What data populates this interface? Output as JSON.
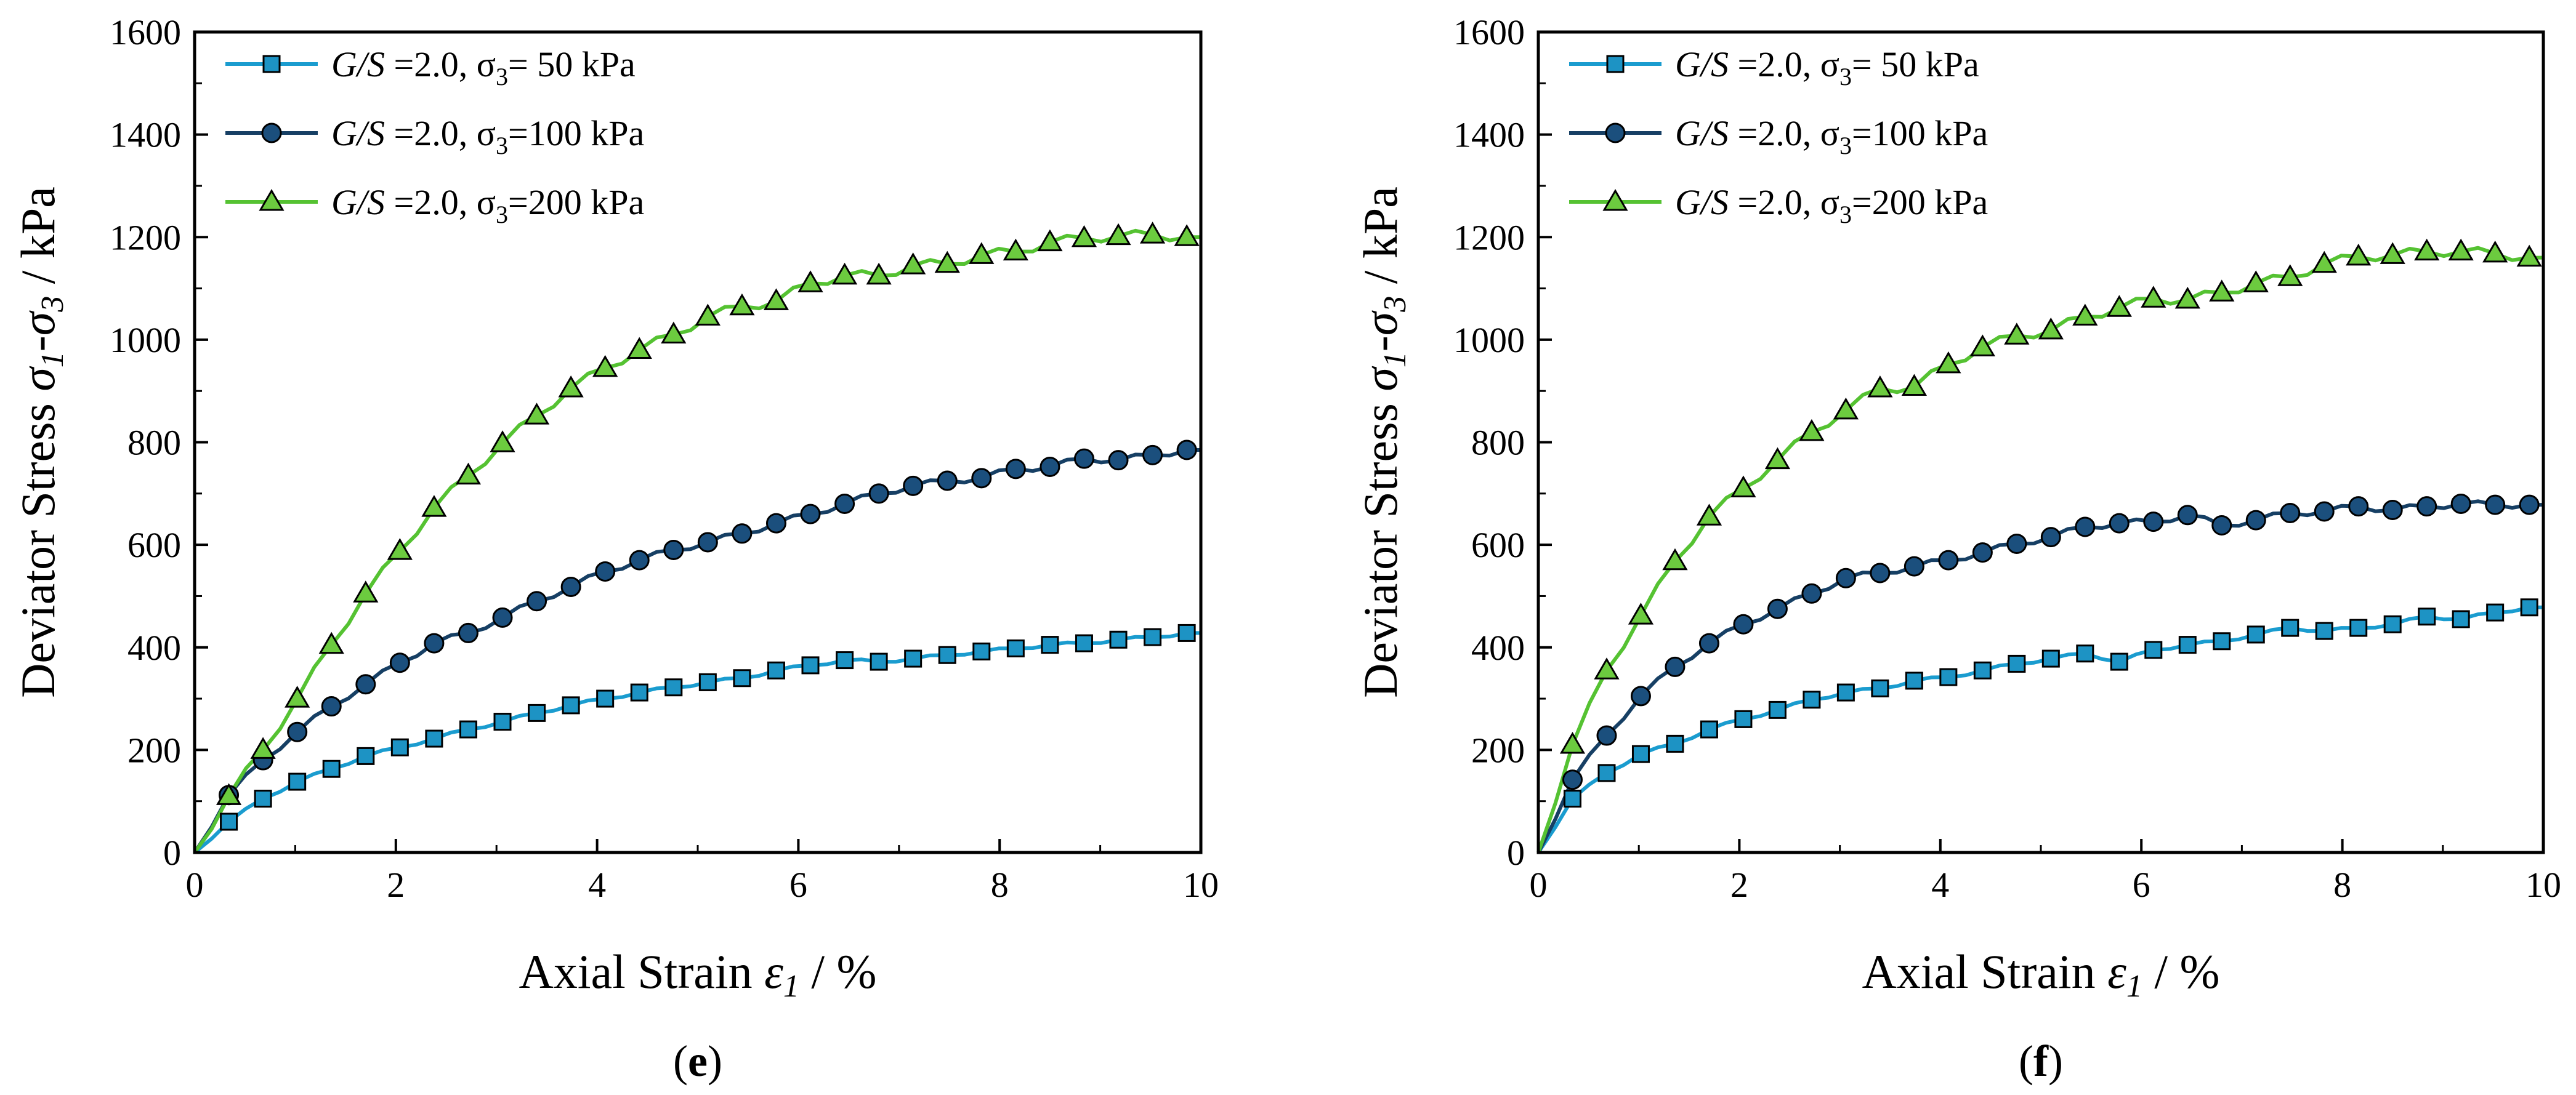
{
  "chart_data": [
    {
      "type": "line",
      "panel_label": "e",
      "xlabel": "Axial Strain ε1 / %",
      "ylabel": "Deviator Stress σ1-σ3 / kPa",
      "xlim": [
        0,
        10
      ],
      "ylim": [
        0,
        1600
      ],
      "xticks": [
        0,
        2,
        4,
        6,
        8,
        10
      ],
      "yticks": [
        0,
        200,
        400,
        600,
        800,
        1000,
        1200,
        1400,
        1600
      ],
      "legend_position": "top-left",
      "series": [
        {
          "name": "G/S =2.0, σ3= 50  kPa",
          "legend": {
            "gs": "G/S",
            "rest": " =2.0, ",
            "sigma": "σ",
            "sub": "3",
            "tail": "= 50  kPa"
          },
          "marker": "square",
          "color": "#1a9ccf",
          "marker_fill": "#1d93c4",
          "x": [
            0,
            0.34,
            0.68,
            1.02,
            1.36,
            1.7,
            2.04,
            2.38,
            2.72,
            3.06,
            3.4,
            3.74,
            4.08,
            4.42,
            4.76,
            5.1,
            5.44,
            5.78,
            6.12,
            6.46,
            6.8,
            7.14,
            7.48,
            7.82,
            8.16,
            8.5,
            8.84,
            9.18,
            9.52,
            9.86
          ],
          "y": [
            0,
            60,
            105,
            138,
            163,
            188,
            205,
            222,
            240,
            255,
            272,
            287,
            300,
            312,
            322,
            332,
            340,
            355,
            365,
            375,
            372,
            378,
            385,
            392,
            398,
            405,
            408,
            415,
            420,
            428
          ]
        },
        {
          "name": "G/S =2.0, σ3=100 kPa",
          "legend": {
            "gs": "G/S",
            "rest": " =2.0, ",
            "sigma": "σ",
            "sub": "3",
            "tail": "=100 kPa"
          },
          "marker": "circle",
          "color": "#163f64",
          "marker_fill": "#1b4f7d",
          "x": [
            0,
            0.34,
            0.68,
            1.02,
            1.36,
            1.7,
            2.04,
            2.38,
            2.72,
            3.06,
            3.4,
            3.74,
            4.08,
            4.42,
            4.76,
            5.1,
            5.44,
            5.78,
            6.12,
            6.46,
            6.8,
            7.14,
            7.48,
            7.82,
            8.16,
            8.5,
            8.84,
            9.18,
            9.52,
            9.86
          ],
          "y": [
            0,
            112,
            180,
            235,
            285,
            328,
            370,
            408,
            428,
            458,
            490,
            518,
            548,
            570,
            590,
            605,
            622,
            642,
            660,
            680,
            700,
            715,
            725,
            730,
            748,
            752,
            768,
            765,
            775,
            785
          ]
        },
        {
          "name": "G/S =2.0, σ3=200 kPa",
          "legend": {
            "gs": "G/S",
            "rest": " =2.0, ",
            "sigma": "σ",
            "sub": "3",
            "tail": "=200 kPa"
          },
          "marker": "triangle",
          "color": "#55c232",
          "marker_fill": "#6ccb3f",
          "x": [
            0,
            0.34,
            0.68,
            1.02,
            1.36,
            1.7,
            2.04,
            2.38,
            2.72,
            3.06,
            3.4,
            3.74,
            4.08,
            4.42,
            4.76,
            5.1,
            5.44,
            5.78,
            6.12,
            6.46,
            6.8,
            7.14,
            7.48,
            7.82,
            8.16,
            8.5,
            8.84,
            9.18,
            9.52,
            9.86
          ],
          "y": [
            0,
            110,
            200,
            300,
            405,
            505,
            588,
            672,
            735,
            798,
            852,
            905,
            945,
            980,
            1010,
            1045,
            1065,
            1075,
            1110,
            1125,
            1125,
            1145,
            1148,
            1165,
            1172,
            1190,
            1198,
            1202,
            1205,
            1200
          ]
        }
      ]
    },
    {
      "type": "line",
      "panel_label": "f",
      "xlabel": "Axial Strain ε1 / %",
      "ylabel": "Deviator Stress σ1-σ3 / kPa",
      "xlim": [
        0,
        10
      ],
      "ylim": [
        0,
        1600
      ],
      "xticks": [
        0,
        2,
        4,
        6,
        8,
        10
      ],
      "yticks": [
        0,
        200,
        400,
        600,
        800,
        1000,
        1200,
        1400,
        1600
      ],
      "legend_position": "top-left",
      "series": [
        {
          "name": "G/S =2.0, σ3= 50  kPa",
          "legend": {
            "gs": "G/S",
            "rest": " =2.0, ",
            "sigma": "σ",
            "sub": "3",
            "tail": "= 50  kPa"
          },
          "marker": "square",
          "color": "#1a9ccf",
          "marker_fill": "#1d93c4",
          "x": [
            0,
            0.34,
            0.68,
            1.02,
            1.36,
            1.7,
            2.04,
            2.38,
            2.72,
            3.06,
            3.4,
            3.74,
            4.08,
            4.42,
            4.76,
            5.1,
            5.44,
            5.78,
            6.12,
            6.46,
            6.8,
            7.14,
            7.48,
            7.82,
            8.16,
            8.5,
            8.84,
            9.18,
            9.52,
            9.86
          ],
          "y": [
            0,
            105,
            155,
            192,
            212,
            240,
            260,
            278,
            298,
            312,
            320,
            335,
            342,
            355,
            368,
            378,
            388,
            372,
            395,
            405,
            412,
            425,
            438,
            432,
            438,
            445,
            460,
            455,
            468,
            478
          ]
        },
        {
          "name": "G/S =2.0, σ3=100 kPa",
          "legend": {
            "gs": "G/S",
            "rest": " =2.0, ",
            "sigma": "σ",
            "sub": "3",
            "tail": "=100 kPa"
          },
          "marker": "circle",
          "color": "#163f64",
          "marker_fill": "#1b4f7d",
          "x": [
            0,
            0.34,
            0.68,
            1.02,
            1.36,
            1.7,
            2.04,
            2.38,
            2.72,
            3.06,
            3.4,
            3.74,
            4.08,
            4.42,
            4.76,
            5.1,
            5.44,
            5.78,
            6.12,
            6.46,
            6.8,
            7.14,
            7.48,
            7.82,
            8.16,
            8.5,
            8.84,
            9.18,
            9.52,
            9.86
          ],
          "y": [
            0,
            142,
            228,
            305,
            362,
            408,
            445,
            475,
            505,
            535,
            545,
            558,
            570,
            585,
            602,
            615,
            635,
            642,
            645,
            658,
            638,
            648,
            662,
            665,
            675,
            668,
            675,
            680,
            678,
            678
          ]
        },
        {
          "name": "G/S =2.0, σ3=200 kPa",
          "legend": {
            "gs": "G/S",
            "rest": " =2.0, ",
            "sigma": "σ",
            "sub": "3",
            "tail": "=200 kPa"
          },
          "marker": "triangle",
          "color": "#55c232",
          "marker_fill": "#6ccb3f",
          "x": [
            0,
            0.34,
            0.68,
            1.02,
            1.36,
            1.7,
            2.04,
            2.38,
            2.72,
            3.06,
            3.4,
            3.74,
            4.08,
            4.42,
            4.76,
            5.1,
            5.44,
            5.78,
            6.12,
            6.46,
            6.8,
            7.14,
            7.48,
            7.82,
            8.16,
            8.5,
            8.84,
            9.18,
            9.52,
            9.86
          ],
          "y": [
            0,
            210,
            355,
            462,
            568,
            655,
            710,
            765,
            820,
            862,
            905,
            908,
            952,
            985,
            1008,
            1018,
            1045,
            1062,
            1080,
            1078,
            1092,
            1110,
            1122,
            1148,
            1162,
            1165,
            1172,
            1172,
            1168,
            1160
          ]
        }
      ]
    }
  ]
}
